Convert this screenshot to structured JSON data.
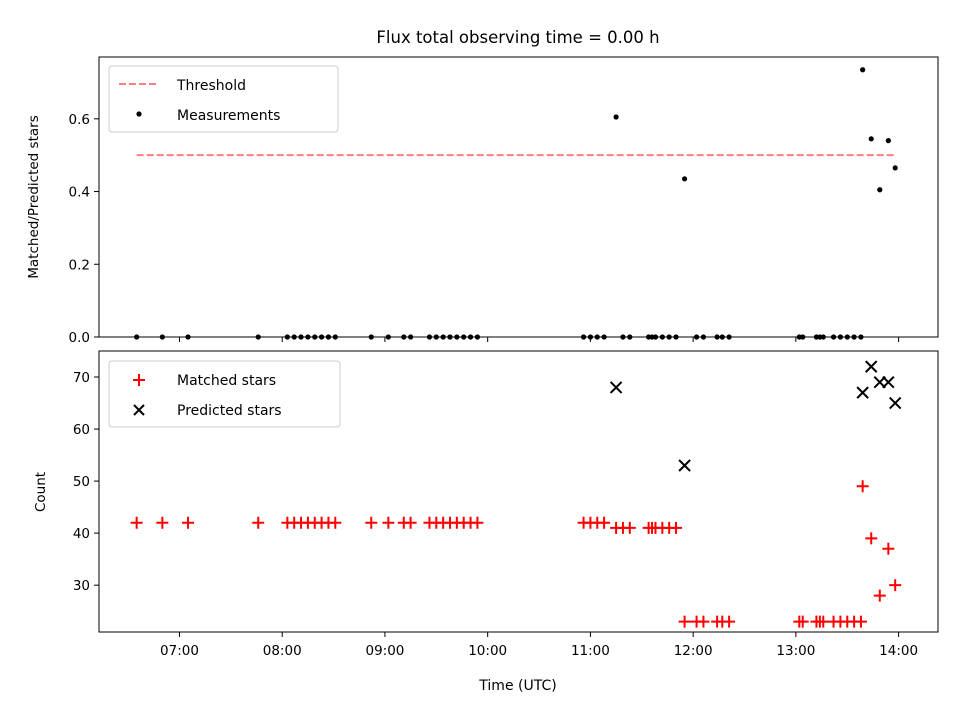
{
  "colors": {
    "threshold": "#ff7f7f",
    "measurements": "#000000",
    "matched": "#ff0000",
    "predicted": "#000000",
    "axes": "#000000"
  },
  "chart_data": [
    {
      "type": "scatter",
      "title": "Flux total observing time = 0.00 h",
      "xlabel": "",
      "ylabel": "Matched/Predicted stars",
      "xlim": [
        "06:13",
        "14:23"
      ],
      "ylim": [
        0,
        0.77
      ],
      "yticks": [
        0.0,
        0.2,
        0.4,
        0.6
      ],
      "ytick_labels": [
        "0.0",
        "0.2",
        "0.4",
        "0.6"
      ],
      "xticks": [
        "07:00",
        "08:00",
        "09:00",
        "10:00",
        "11:00",
        "12:00",
        "13:00",
        "14:00"
      ],
      "legend_position": "top-left",
      "series": [
        {
          "name": "Threshold",
          "style": "dashed-line",
          "color": "#ff7f7f",
          "x": [
            "06:35",
            "13:58"
          ],
          "y": [
            0.5,
            0.5
          ]
        },
        {
          "name": "Measurements",
          "style": "dot",
          "color": "#000000",
          "x": [
            "06:35",
            "06:50",
            "07:05",
            "07:46",
            "08:03",
            "08:07",
            "08:11",
            "08:15",
            "08:19",
            "08:23",
            "08:27",
            "08:31",
            "08:52",
            "09:02",
            "09:11",
            "09:15",
            "09:26",
            "09:30",
            "09:34",
            "09:38",
            "09:42",
            "09:46",
            "09:50",
            "09:54",
            "10:56",
            "11:00",
            "11:04",
            "11:08",
            "11:15",
            "11:19",
            "11:23",
            "11:34",
            "11:36",
            "11:38",
            "11:42",
            "11:46",
            "11:50",
            "11:55",
            "12:02",
            "12:06",
            "12:14",
            "12:17",
            "12:21",
            "13:02",
            "13:04",
            "13:12",
            "13:14",
            "13:16",
            "13:22",
            "13:26",
            "13:30",
            "13:34",
            "13:38",
            "13:39",
            "13:44",
            "13:49",
            "13:54",
            "13:58"
          ],
          "y": [
            0,
            0,
            0,
            0,
            0,
            0,
            0,
            0,
            0,
            0,
            0,
            0,
            0,
            0,
            0,
            0,
            0,
            0,
            0,
            0,
            0,
            0,
            0,
            0,
            0,
            0,
            0,
            0,
            0.605,
            0,
            0,
            0,
            0,
            0,
            0,
            0,
            0,
            0.435,
            0,
            0,
            0,
            0,
            0,
            0,
            0,
            0,
            0,
            0,
            0,
            0,
            0,
            0,
            0,
            0.735,
            0.545,
            0.405,
            0.54,
            0.465
          ]
        }
      ]
    },
    {
      "type": "scatter",
      "title": "",
      "xlabel": "Time (UTC)",
      "ylabel": "Count",
      "xlim": [
        "06:13",
        "14:23"
      ],
      "ylim": [
        21,
        75
      ],
      "yticks": [
        30,
        40,
        50,
        60,
        70
      ],
      "ytick_labels": [
        "30",
        "40",
        "50",
        "60",
        "70"
      ],
      "xticks": [
        "07:00",
        "08:00",
        "09:00",
        "10:00",
        "11:00",
        "12:00",
        "13:00",
        "14:00"
      ],
      "legend_position": "top-left",
      "series": [
        {
          "name": "Matched stars",
          "style": "plus",
          "color": "#ff0000",
          "x": [
            "06:35",
            "06:50",
            "07:05",
            "07:46",
            "08:03",
            "08:07",
            "08:11",
            "08:15",
            "08:19",
            "08:23",
            "08:27",
            "08:31",
            "08:52",
            "09:02",
            "09:11",
            "09:15",
            "09:26",
            "09:30",
            "09:34",
            "09:38",
            "09:42",
            "09:46",
            "09:50",
            "09:54",
            "10:56",
            "11:00",
            "11:04",
            "11:08",
            "11:15",
            "11:19",
            "11:23",
            "11:34",
            "11:36",
            "11:38",
            "11:42",
            "11:46",
            "11:50",
            "11:55",
            "12:02",
            "12:06",
            "12:14",
            "12:17",
            "12:21",
            "13:02",
            "13:04",
            "13:12",
            "13:14",
            "13:16",
            "13:22",
            "13:26",
            "13:30",
            "13:34",
            "13:38",
            "13:39",
            "13:44",
            "13:49",
            "13:54",
            "13:58"
          ],
          "y": [
            42,
            42,
            42,
            42,
            42,
            42,
            42,
            42,
            42,
            42,
            42,
            42,
            42,
            42,
            42,
            42,
            42,
            42,
            42,
            42,
            42,
            42,
            42,
            42,
            42,
            42,
            42,
            42,
            41,
            41,
            41,
            41,
            41,
            41,
            41,
            41,
            41,
            23,
            23,
            23,
            23,
            23,
            23,
            23,
            23,
            23,
            23,
            23,
            23,
            23,
            23,
            23,
            23,
            49,
            39,
            28,
            37,
            30
          ]
        },
        {
          "name": "Predicted stars",
          "style": "x",
          "color": "#000000",
          "x": [
            "11:15",
            "11:55",
            "13:39",
            "13:44",
            "13:49",
            "13:54",
            "13:58"
          ],
          "y": [
            68,
            53,
            67,
            72,
            69,
            69,
            65
          ]
        }
      ]
    }
  ]
}
